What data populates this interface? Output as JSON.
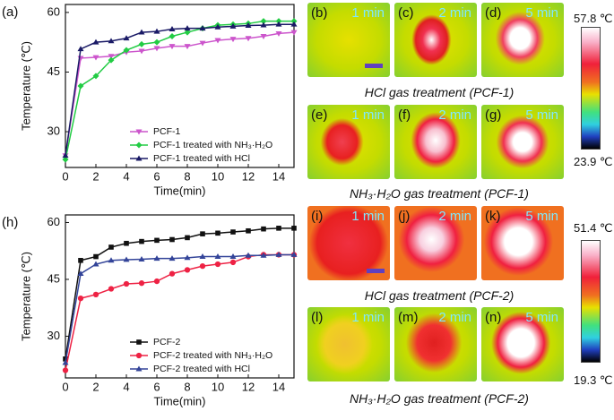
{
  "chart_data": [
    {
      "type": "line",
      "panel_label": "(a)",
      "x_label": "Time(min)",
      "y_label": "Temperature (℃)",
      "x": [
        0,
        1,
        2,
        3,
        4,
        5,
        6,
        7,
        8,
        9,
        10,
        11,
        12,
        13,
        14,
        15
      ],
      "xlim": [
        0,
        15
      ],
      "xticks": [
        0,
        2,
        4,
        6,
        8,
        10,
        12,
        14
      ],
      "ylim": [
        21,
        62
      ],
      "yticks": [
        30,
        45,
        60
      ],
      "grid": false,
      "series": [
        {
          "name": "PCF-1",
          "color": "#cc55cc",
          "marker": "triangle-down",
          "values": [
            24,
            48.5,
            48.7,
            49,
            50,
            50.3,
            51,
            51.5,
            51.5,
            52.3,
            53,
            53.3,
            53.5,
            54,
            54.7,
            55
          ]
        },
        {
          "name": "PCF-1 treated with NH₃·H₂O",
          "color": "#22cc44",
          "marker": "diamond",
          "values": [
            23,
            41.5,
            44,
            48,
            50.5,
            52,
            52.5,
            54,
            55,
            56,
            56.8,
            57,
            57.2,
            57.8,
            57.8,
            57.8
          ]
        },
        {
          "name": "PCF-1 treated with HCl",
          "color": "#1a1a66",
          "marker": "triangle-up",
          "values": [
            24,
            50.8,
            52.5,
            52.8,
            53.5,
            55,
            55.2,
            55.8,
            56,
            56,
            56.3,
            56.5,
            56.7,
            56.8,
            57,
            57
          ]
        }
      ]
    },
    {
      "type": "line",
      "panel_label": "(h)",
      "x_label": "Time(min)",
      "y_label": "Temperature (℃)",
      "x": [
        0,
        1,
        2,
        3,
        4,
        5,
        6,
        7,
        8,
        9,
        10,
        11,
        12,
        13,
        14,
        15
      ],
      "xlim": [
        0,
        15
      ],
      "xticks": [
        0,
        2,
        4,
        6,
        8,
        10,
        12,
        14
      ],
      "ylim": [
        19,
        62
      ],
      "yticks": [
        30,
        45,
        60
      ],
      "grid": false,
      "series": [
        {
          "name": "PCF-2",
          "color": "#111111",
          "marker": "square",
          "values": [
            24,
            50,
            51,
            53.5,
            54.5,
            55,
            55.3,
            55.5,
            56,
            57,
            57.2,
            57.5,
            57.8,
            58.3,
            58.5,
            58.5
          ]
        },
        {
          "name": "PCF-2 treated with NH₃·H₂O",
          "color": "#ee2244",
          "marker": "circle",
          "values": [
            21,
            40,
            41,
            42.5,
            43.8,
            44,
            44.5,
            46.5,
            47.5,
            48.5,
            49,
            49.5,
            51,
            51.5,
            51.5,
            51.5
          ]
        },
        {
          "name": "PCF-2 treated with HCl",
          "color": "#334499",
          "marker": "triangle-up",
          "values": [
            23,
            46.5,
            49,
            50,
            50.2,
            50.3,
            50.5,
            50.5,
            50.7,
            51,
            51,
            51,
            51.3,
            51.3,
            51.5,
            51.5
          ]
        }
      ]
    }
  ],
  "images": {
    "panels": [
      {
        "label": "(b)",
        "time": "1 min"
      },
      {
        "label": "(c)",
        "time": "2 min"
      },
      {
        "label": "(d)",
        "time": "5 min"
      },
      {
        "label": "(e)",
        "time": "1 min"
      },
      {
        "label": "(f)",
        "time": "2 min"
      },
      {
        "label": "(g)",
        "time": "5 min"
      },
      {
        "label": "(i)",
        "time": "1 min"
      },
      {
        "label": "(j)",
        "time": "2 min"
      },
      {
        "label": "(k)",
        "time": "5 min"
      },
      {
        "label": "(l)",
        "time": "1 min"
      },
      {
        "label": "(m)",
        "time": "2 min"
      },
      {
        "label": "(n)",
        "time": "5 min"
      }
    ],
    "captions": [
      "HCl gas treatment (PCF-1)",
      "NH₃·H₂O gas treatment (PCF-1)",
      "HCl gas treatment (PCF-2)",
      "NH₃·H₂O gas treatment (PCF-2)"
    ],
    "colorbars": [
      {
        "max": "57.8 ℃",
        "min": "23.9 ℃"
      },
      {
        "max": "51.4 ℃",
        "min": "19.3 ℃"
      }
    ]
  }
}
